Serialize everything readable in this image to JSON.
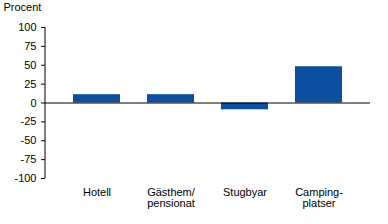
{
  "chart_data": {
    "type": "bar",
    "y_label": "Procent",
    "categories": [
      "Hotell",
      "Gästhem/\npensionat",
      "Stugbyar",
      "Camping-\nplatser"
    ],
    "values": [
      11,
      11,
      -9,
      48
    ],
    "color": "#0b4f9e",
    "ylim": [
      -100,
      100
    ],
    "yticks": [
      -100,
      -75,
      -50,
      -25,
      0,
      25,
      50,
      75,
      100
    ],
    "grid": false
  }
}
